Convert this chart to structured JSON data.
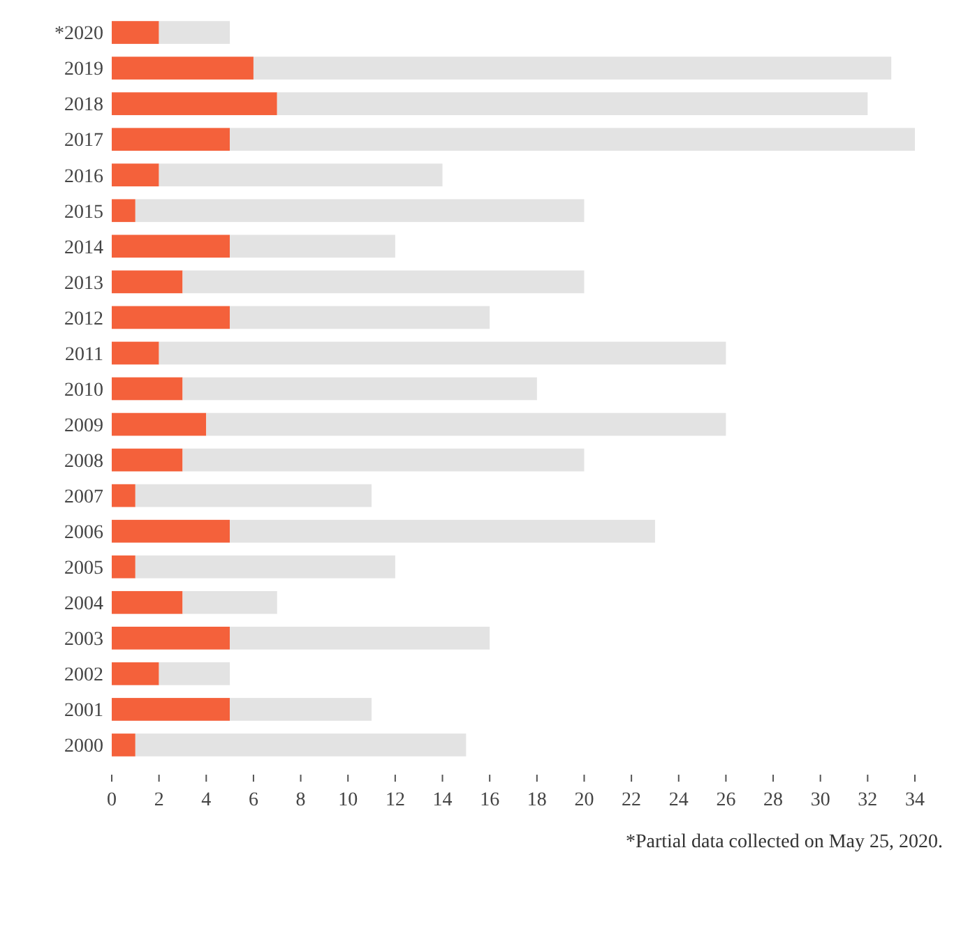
{
  "chart_data": {
    "type": "bar",
    "orientation": "horizontal",
    "categories": [
      "*2020",
      "2019",
      "2018",
      "2017",
      "2016",
      "2015",
      "2014",
      "2013",
      "2012",
      "2011",
      "2010",
      "2009",
      "2008",
      "2007",
      "2006",
      "2005",
      "2004",
      "2003",
      "2002",
      "2001",
      "2000"
    ],
    "series": [
      {
        "color": "#f4613b",
        "values": [
          2,
          6,
          7,
          5,
          2,
          1,
          5,
          3,
          5,
          2,
          3,
          4,
          3,
          1,
          5,
          1,
          3,
          5,
          2,
          5,
          1
        ]
      },
      {
        "color": "#e3e3e3",
        "values": [
          3,
          27,
          25,
          29,
          12,
          19,
          7,
          17,
          11,
          24,
          15,
          22,
          17,
          10,
          18,
          11,
          4,
          11,
          3,
          6,
          14
        ]
      }
    ],
    "stacked": true,
    "xlim": [
      0,
      34
    ],
    "xticks": [
      0,
      2,
      4,
      6,
      8,
      10,
      12,
      14,
      16,
      18,
      20,
      22,
      24,
      26,
      28,
      30,
      32,
      34
    ],
    "grid": false,
    "annotations": [
      "*Partial data collected on May 25, 2020."
    ]
  }
}
